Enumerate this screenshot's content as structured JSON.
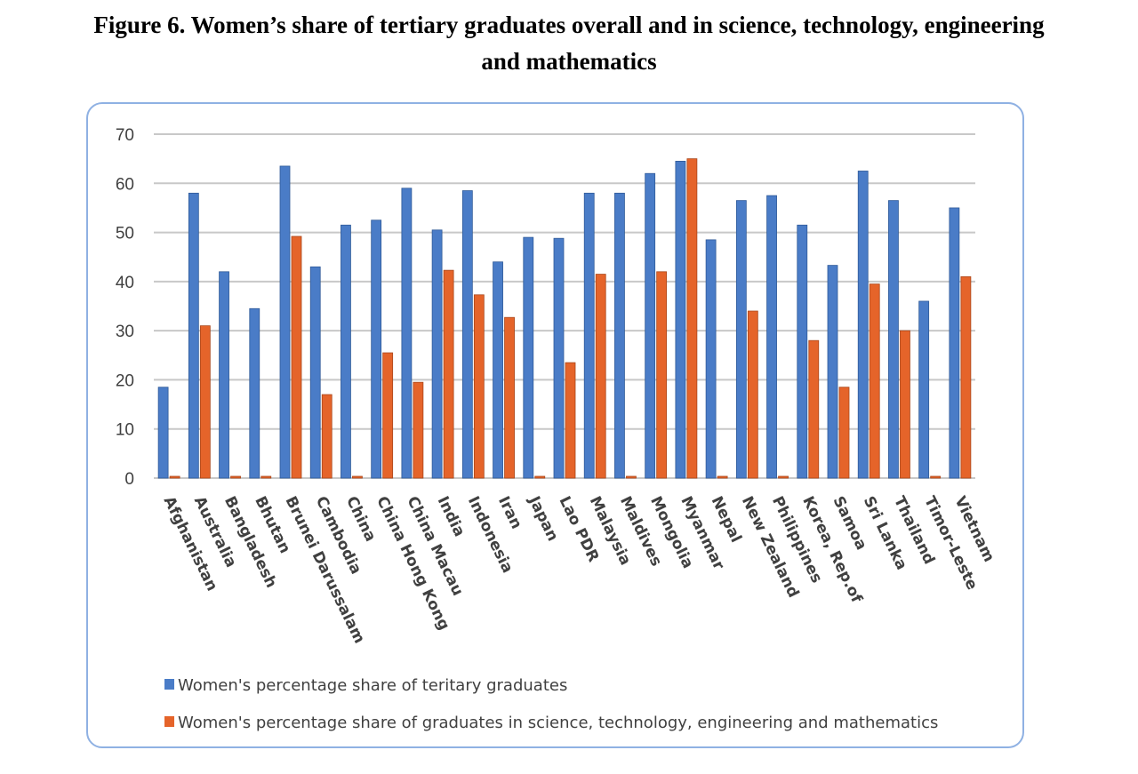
{
  "figure": {
    "title_line1": "Figure 6.   Women’s share of tertiary graduates overall and in science, technology, engineering",
    "title_line2": "and mathematics"
  },
  "colors": {
    "series1": "#4a7cc7",
    "series1_edge": "#2f5a98",
    "series2": "#e5642a",
    "series2_edge": "#a9461a",
    "grid": "#c8c8c8",
    "frame": "#8fb1e3"
  },
  "chart_data": {
    "type": "bar",
    "title": "Women’s share of tertiary graduates overall and in science, technology, engineering and mathematics",
    "xlabel": "",
    "ylabel": "",
    "ylim": [
      0,
      70
    ],
    "yticks": [
      0,
      10,
      20,
      30,
      40,
      50,
      60,
      70
    ],
    "grid": true,
    "legend_position": "bottom",
    "categories": [
      "Afghanistan",
      "Australia",
      "Bangladesh",
      "Bhutan",
      "Brunei Darussalam",
      "Cambodia",
      "China",
      "China Hong Kong",
      "China Macau",
      "India",
      "Indonesia",
      "Iran",
      "Japan",
      "Lao PDR",
      "Malaysia",
      "Maldives",
      "Mongolia",
      "Myanmar",
      "Nepal",
      "New Zealand",
      "Philippines",
      "Korea, Rep.of",
      "Samoa",
      "Sri Lanka",
      "Thailand",
      "Timor-Leste",
      "Vietnam"
    ],
    "series": [
      {
        "name": "Women's percentage share of teritary graduates",
        "values": [
          18.5,
          58,
          42,
          34.5,
          63.5,
          43,
          51.5,
          52.5,
          59,
          50.5,
          58.5,
          44,
          49,
          48.8,
          58,
          58,
          62,
          64.5,
          48.5,
          56.5,
          57.5,
          51.5,
          43.3,
          62.5,
          56.5,
          36,
          55
        ]
      },
      {
        "name": "Women's percentage share of graduates in science, technology, engineering and mathematics",
        "values": [
          0,
          31,
          0,
          0,
          49.2,
          17,
          0,
          25.5,
          19.5,
          42.3,
          37.3,
          32.7,
          0,
          23.5,
          41.5,
          0,
          42,
          65,
          0,
          34,
          0,
          28,
          18.5,
          39.5,
          30,
          0,
          41
        ]
      }
    ]
  }
}
